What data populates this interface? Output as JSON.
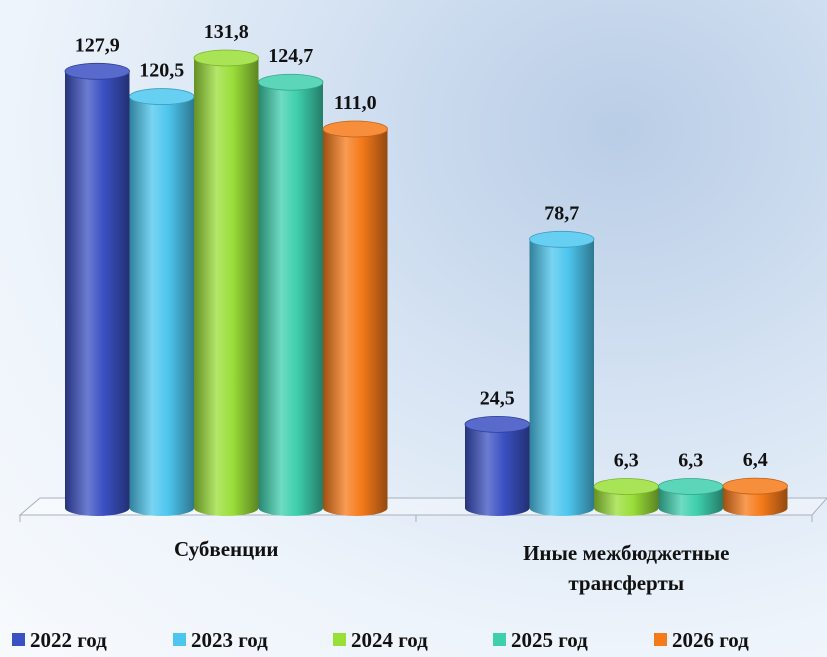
{
  "chart_data": {
    "type": "bar",
    "categories": [
      "Субвенции",
      "Иные межбюджетные трансферты"
    ],
    "series": [
      {
        "name": "2022 год",
        "color": "#3b50c2",
        "values": [
          127.9,
          24.5
        ],
        "value_labels": [
          "127,9",
          "24,5"
        ]
      },
      {
        "name": "2023 год",
        "color": "#4cc6ee",
        "values": [
          120.5,
          78.7
        ],
        "value_labels": [
          "120,5",
          "78,7"
        ]
      },
      {
        "name": "2024 год",
        "color": "#9ade38",
        "values": [
          131.8,
          6.3
        ],
        "value_labels": [
          "131,8",
          "6,3"
        ]
      },
      {
        "name": "2025 год",
        "color": "#3ecfad",
        "values": [
          124.7,
          6.3
        ],
        "value_labels": [
          "124,7",
          "6,3"
        ]
      },
      {
        "name": "2026 год",
        "color": "#f57a1a",
        "values": [
          111.0,
          6.4
        ],
        "value_labels": [
          "111,0",
          "6,4"
        ]
      }
    ]
  }
}
